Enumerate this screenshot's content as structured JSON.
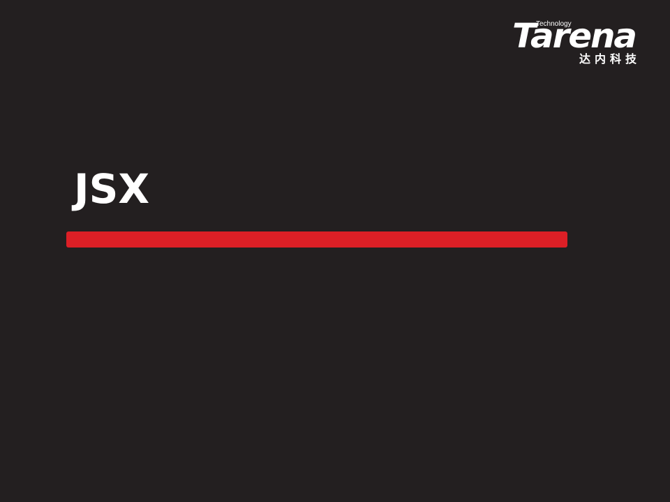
{
  "logo": {
    "technology": "Technology",
    "brand": "Tarena",
    "chinese": "达内科技"
  },
  "slide": {
    "title": "JSX"
  },
  "colors": {
    "background": "#231f20",
    "accent_bar": "#dc1f26",
    "text": "#ffffff"
  }
}
